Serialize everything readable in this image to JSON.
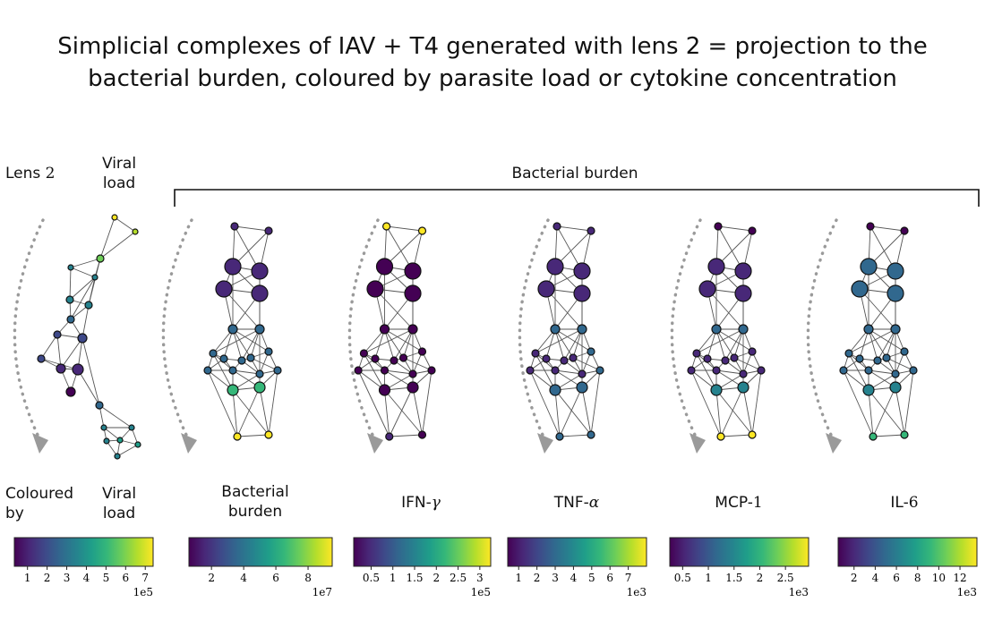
{
  "title": {
    "line1": "Simplicial complexes of IAV + T4 generated with lens 2 = projection to the",
    "line2": "bacterial burden, coloured by parasite load or cytokine concentration"
  },
  "header": {
    "lens_label": "Lens",
    "lens_number": "2",
    "viral_load_line1": "Viral",
    "viral_load_line2": "load",
    "bracket_label": "Bacterial burden"
  },
  "coloured_by": {
    "line1": "Coloured",
    "line2": "by"
  },
  "panels": [
    {
      "key": "viral",
      "label1": "Viral",
      "label2": "load",
      "label_math": "",
      "ticks": [
        "1",
        "2",
        "3",
        "4",
        "5",
        "6",
        "7"
      ],
      "multiplier": "1e5"
    },
    {
      "key": "bacterial",
      "label1": "Bacterial",
      "label2": "burden",
      "label_math": "",
      "ticks": [
        "2",
        "4",
        "6",
        "8"
      ],
      "multiplier": "1e7"
    },
    {
      "key": "ifn",
      "label1": "IFN-",
      "label2": "",
      "label_math": "γ",
      "ticks": [
        "0.5",
        "1",
        "1.5",
        "2",
        "2.5",
        "3"
      ],
      "multiplier": "1e5"
    },
    {
      "key": "tnf",
      "label1": "TNF-",
      "label2": "",
      "label_math": "α",
      "ticks": [
        "1",
        "2",
        "3",
        "4",
        "5",
        "6",
        "7"
      ],
      "multiplier": "1e3"
    },
    {
      "key": "mcp",
      "label1": "MCP-",
      "label2": "",
      "label_math": "1",
      "ticks": [
        "0.5",
        "1",
        "1.5",
        "2",
        "2.5"
      ],
      "multiplier": "1e3"
    },
    {
      "key": "il6",
      "label1": "IL-",
      "label2": "",
      "label_math": "6",
      "ticks": [
        "2",
        "4",
        "6",
        "8",
        "10",
        "12"
      ],
      "multiplier": "1e3"
    }
  ],
  "colors": {
    "viridis": [
      "#440154",
      "#482878",
      "#3e4989",
      "#31688e",
      "#26828e",
      "#1f9e89",
      "#35b779",
      "#6ece58",
      "#b5de2b",
      "#fde725"
    ],
    "edge": "#555555",
    "arrow": "#9a9a9a",
    "node_stroke": "#111111"
  }
}
